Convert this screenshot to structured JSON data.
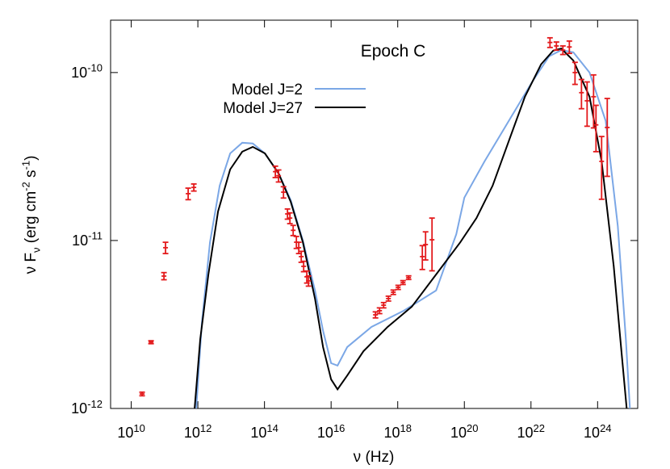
{
  "chart_data": {
    "type": "line",
    "title": "Epoch C",
    "x_label": "ν (Hz)",
    "y_label": "ν F_ν (erg cm^-2 s^-1)",
    "log_x": true,
    "log_y": true,
    "xlim": [
      2400000000.0,
      1.6e+25
    ],
    "ylim": [
      1e-12,
      2.05e-10
    ],
    "xticks": [
      {
        "value": 10000000000.0,
        "label": "10^10"
      },
      {
        "value": 1000000000000.0,
        "label": "10^12"
      },
      {
        "value": 100000000000000.0,
        "label": "10^14"
      },
      {
        "value": 1e+16,
        "label": "10^16"
      },
      {
        "value": 1e+18,
        "label": "10^18"
      },
      {
        "value": 1e+20,
        "label": "10^20"
      },
      {
        "value": 1e+22,
        "label": "10^22"
      },
      {
        "value": 1e+24,
        "label": "10^24"
      }
    ],
    "yticks": [
      {
        "value": 1e-12,
        "label": "10^-12"
      },
      {
        "value": 1e-11,
        "label": "10^-11"
      },
      {
        "value": 1e-10,
        "label": "10^-10"
      }
    ],
    "legend": "top-center",
    "series": [
      {
        "name": "Model J=2",
        "color": "#7ba7e6",
        "x": [
          895000000000.0,
          1320000000000.0,
          2310000000000.0,
          4520000000000.0,
          9330000000000.0,
          21500000000000.0,
          44500000000000.0,
          103000000000000.0,
          265000000000000.0,
          613000000000000.0,
          1420000000000000.0,
          3280000000000000.0,
          5730000000000000.0,
          1e+16,
          1.56e+16,
          3.05e+16,
          1.63e+17,
          1.52e+18,
          1.42e+19,
          5.73e+19,
          1e+20,
          4.04e+20,
          2.15e+21,
          1.15e+22,
          3.51e+22,
          8.11e+22,
          1.87e+23,
          5.73e+23,
          1.75e+24,
          4.04e+24,
          7.05e+24,
          9.33e+24
        ],
        "values": [
          1e-12,
          3.24e-12,
          9.77e-12,
          2.12e-11,
          3.3e-11,
          3.82e-11,
          3.78e-11,
          3.3e-11,
          2.51e-11,
          1.74e-11,
          1e-11,
          5.04e-12,
          2.9e-12,
          1.86e-12,
          1.8e-12,
          2.32e-12,
          3.06e-12,
          3.82e-12,
          5.04e-12,
          1.09e-11,
          1.8e-11,
          2.96e-11,
          5.15e-11,
          8.96e-11,
          1.25e-10,
          1.36e-10,
          1.32e-10,
          1e-10,
          5.15e-11,
          1.22e-11,
          2.59e-12,
          1e-12
        ]
      },
      {
        "name": "Model J=27",
        "color": "#000000",
        "x": [
          800000000000.0,
          1180000000000.0,
          2070000000000.0,
          4040000000000.0,
          9330000000000.0,
          21500000000000.0,
          44500000000000.0,
          103000000000000.0,
          265000000000000.0,
          613000000000000.0,
          1420000000000000.0,
          3280000000000000.0,
          5730000000000000.0,
          1e+16,
          1.56e+16,
          3.05e+16,
          9.33e+16,
          4.98e+17,
          2.66e+18,
          1.42e+19,
          7.57e+19,
          2.31e+20,
          7.05e+20,
          2.15e+21,
          6.58e+21,
          2.01e+22,
          4.64e+22,
          8.11e+22,
          1.87e+23,
          5.73e+23,
          1.32e+24,
          3.05e+24,
          5.33e+24,
          7.46e+24
        ],
        "values": [
          1e-12,
          2.59e-12,
          6.28e-12,
          1.49e-11,
          2.65e-11,
          3.38e-11,
          3.61e-11,
          3.3e-11,
          2.51e-11,
          1.7e-11,
          9.77e-12,
          4.51e-12,
          2.32e-12,
          1.49e-12,
          1.3e-12,
          1.57e-12,
          2.19e-12,
          3.06e-12,
          4.04e-12,
          6.28e-12,
          9.77e-12,
          1.36e-11,
          2.12e-11,
          3.9e-11,
          7.18e-11,
          1.12e-10,
          1.35e-10,
          1.39e-10,
          1.18e-10,
          7.18e-11,
          2.96e-11,
          7.02e-12,
          2.07e-12,
          1e-12
        ]
      }
    ],
    "points": {
      "color": "#e31a1c",
      "x": [
        21200000000.0,
        39300000000.0,
        96000000000.0,
        107000000000.0,
        512000000000.0,
        757000000000.0,
        212000000000000.0,
        265000000000000.0,
        372000000000000.0,
        491000000000000.0,
        580000000000000.0,
        726000000000000.0,
        908000000000000.0,
        1070000000000000.0,
        1270000000000000.0,
        1500000000000000.0,
        1870000000000000.0,
        2100000000000000.0,
        2.15e+17,
        2.85e+17,
        3.77e+17,
        5.26e+17,
        7.36e+17,
        1.03e+18,
        1.44e+18,
        2.12e+18,
        5.48e+18,
        6.85e+18,
        1.07e+19,
        3.72e+22,
        5.8e+22,
        9.08e+22,
        1.42e+23,
        2.1e+23,
        3.28e+23,
        4.84e+23,
        7.57e+23,
        8.95e+23,
        1.32e+24,
        1.95e+24
      ],
      "values": [
        1.22e-12,
        2.48e-12,
        6.14e-12,
        9.06e-12,
        1.9e-11,
        2.07e-11,
        2.57e-11,
        2.43e-11,
        1.94e-11,
        1.44e-11,
        1.36e-11,
        1.15e-11,
        9.77e-12,
        9.06e-12,
        8.02e-12,
        7.02e-12,
        6.08e-12,
        5.75e-12,
        3.61e-12,
        3.82e-12,
        4.12e-12,
        4.51e-12,
        4.92e-12,
        5.26e-12,
        5.62e-12,
        6.01e-12,
        8.02e-12,
        9.46e-12,
        1.01e-11,
        1.51e-10,
        1.44e-10,
        1.36e-10,
        1.42e-10,
        1e-10,
        7.59e-11,
        6.79e-11,
        7.18e-11,
        4.88e-11,
        2.96e-11,
        4.71e-11
      ],
      "errors": [
        3e-14,
        5e-14,
        3e-13,
        7e-13,
        1.5e-12,
        1e-12,
        2e-12,
        2e-12,
        1.5e-12,
        1e-12,
        1e-12,
        8e-13,
        8e-13,
        7e-13,
        6e-13,
        5e-13,
        5e-13,
        4e-13,
        1.5e-13,
        1.5e-13,
        1.5e-13,
        1.5e-13,
        1.5e-13,
        1.5e-13,
        1.5e-13,
        1.5e-13,
        1.3e-12,
        1.8e-12,
        3.5e-12,
        1e-11,
        8e-12,
        8e-12,
        1.2e-11,
        1.5e-11,
        1.5e-11,
        2e-11,
        2.5e-11,
        1.5e-11,
        1.2e-11,
        2.3e-11
      ]
    }
  }
}
